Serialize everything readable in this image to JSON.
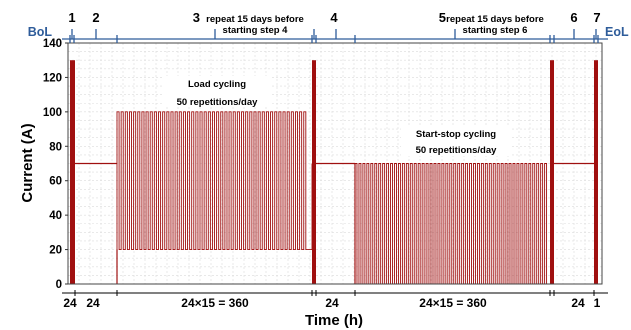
{
  "chart_data": {
    "type": "line",
    "xlabel": "Time (h)",
    "ylabel": "Current (A)",
    "ylim": [
      0,
      140
    ],
    "yticks": [
      0,
      20,
      40,
      60,
      80,
      100,
      120,
      140
    ],
    "grid": true,
    "bottom_labels": [
      "24",
      "24",
      "24×15 = 360",
      "24",
      "24×15 = 360",
      "24",
      "1"
    ],
    "timeline": {
      "bol_label": "BoL",
      "eol_label": "EoL",
      "steps": [
        {
          "num": "1",
          "text1": "",
          "text2": ""
        },
        {
          "num": "2",
          "text1": "",
          "text2": ""
        },
        {
          "num": "3",
          "text1": "repeat 15 days before",
          "text2": "starting step 4"
        },
        {
          "num": "4",
          "text1": "",
          "text2": ""
        },
        {
          "num": "5",
          "text1": "repeat 15 days before",
          "text2": "starting step 6"
        },
        {
          "num": "6",
          "text1": "",
          "text2": ""
        },
        {
          "num": "7",
          "text1": "",
          "text2": ""
        }
      ]
    },
    "annotations": [
      {
        "line1": "Load cycling",
        "line2": "50 repetitions/day"
      },
      {
        "line1": "Start-stop cycling",
        "line2": "50 repetitions/day"
      }
    ],
    "segments": [
      {
        "name": "capacity check",
        "current_max": 130
      },
      {
        "name": "constant",
        "current": 70
      },
      {
        "name": "load cycling",
        "current_low": 20,
        "current_high": 100,
        "duration_h": 360
      },
      {
        "name": "capacity check",
        "current_max": 130
      },
      {
        "name": "constant",
        "current": 70
      },
      {
        "name": "start-stop cycling",
        "current_low": 0,
        "current_high": 70,
        "duration_h": 360
      },
      {
        "name": "capacity check",
        "current_max": 130
      },
      {
        "name": "constant",
        "current": 70
      },
      {
        "name": "capacity check",
        "current_max": 130
      }
    ],
    "colors": {
      "line": "#a01010",
      "axis_blue": "#2e5c9a",
      "grid": "#dcdcdc"
    }
  }
}
